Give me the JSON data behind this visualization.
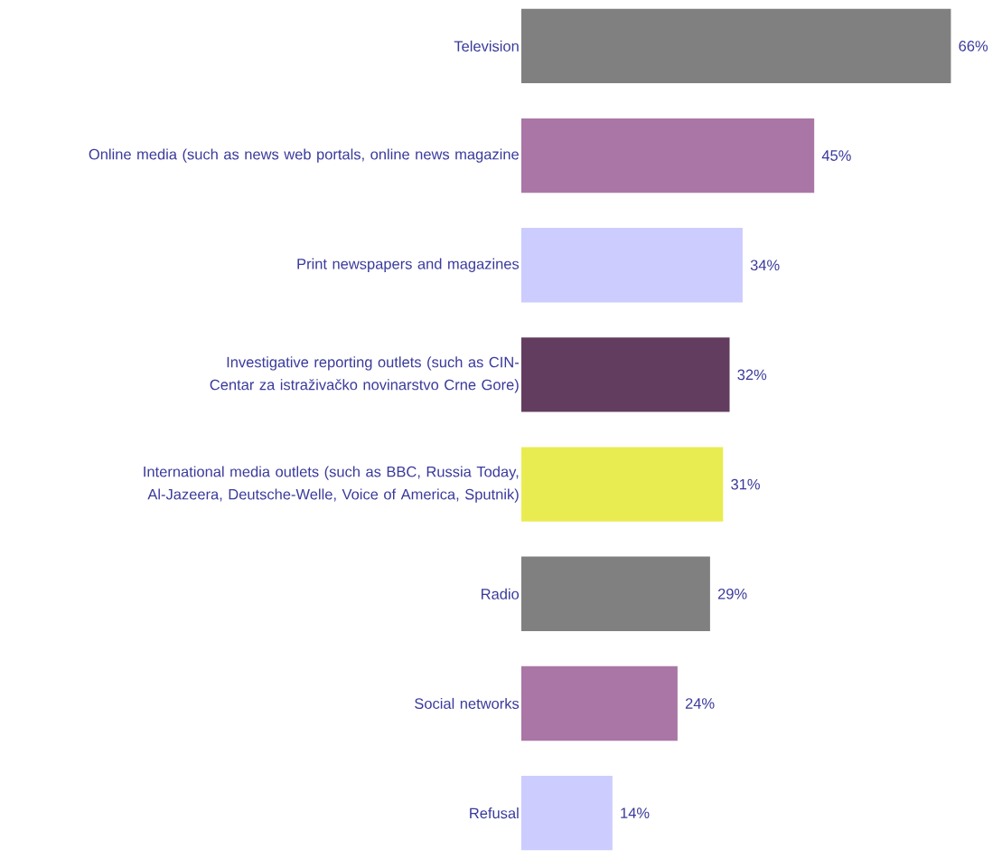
{
  "chart_data": {
    "type": "bar",
    "orientation": "horizontal",
    "categories": [
      "Television",
      "Online media (such as news web portals, online news magazine",
      "Print newspapers and magazines",
      "Investigative reporting outlets (such as CIN-Centar za istraživačko novinarstvo Crne Gore)",
      "International media outlets (such as BBC, Russia Today, Al-Jazeera, Deutsche-Welle, Voice of America, Sputnik)",
      "Radio",
      "Social networks",
      "Refusal"
    ],
    "values": [
      66,
      45,
      34,
      32,
      31,
      29,
      24,
      14
    ],
    "value_labels": [
      "66%",
      "45%",
      "34%",
      "32%",
      "31%",
      "29%",
      "24%",
      "14%"
    ],
    "colors": [
      "#808080",
      "#a976a6",
      "#ccccff",
      "#623d5f",
      "#e9ec51",
      "#808080",
      "#a976a6",
      "#ccccff"
    ]
  }
}
